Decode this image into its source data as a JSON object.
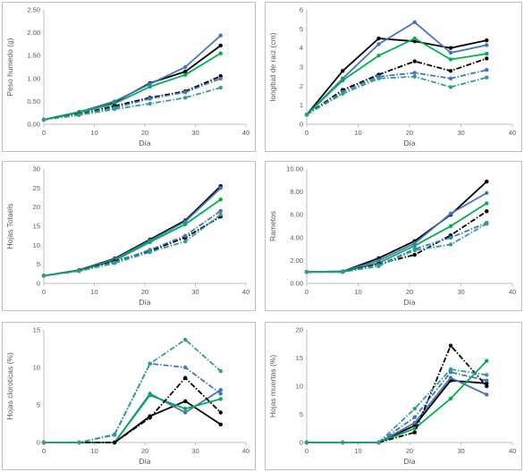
{
  "colors": {
    "black": "#000000",
    "blue": "#4472C4",
    "green": "#00B050",
    "teal": "#2E9F8C"
  },
  "chart_data": [
    {
      "type": "line",
      "xlabel": "Día",
      "ylabel": "Peso humedo (g)",
      "xlim": [
        0,
        40
      ],
      "ylim": [
        0,
        2.5
      ],
      "xticks": [
        "0",
        "10",
        "20",
        "30",
        "40"
      ],
      "yticks": [
        "0.00",
        "0.50",
        "1.00",
        "1.50",
        "2.00",
        "2.50"
      ],
      "x": [
        0,
        7,
        14,
        21,
        28,
        35
      ],
      "series": [
        {
          "color": "#000000",
          "dash": "solid",
          "values": [
            0.1,
            0.27,
            0.48,
            0.9,
            1.15,
            1.72
          ]
        },
        {
          "color": "#4472C4",
          "dash": "solid",
          "values": [
            0.1,
            0.27,
            0.5,
            0.88,
            1.25,
            1.94
          ]
        },
        {
          "color": "#00B050",
          "dash": "solid",
          "values": [
            0.1,
            0.26,
            0.45,
            0.82,
            1.08,
            1.55
          ]
        },
        {
          "color": "#000000",
          "dash": "dashdot",
          "values": [
            0.1,
            0.22,
            0.4,
            0.58,
            0.72,
            1.05
          ]
        },
        {
          "color": "#4472C4",
          "dash": "dashdot",
          "values": [
            0.1,
            0.21,
            0.36,
            0.56,
            0.7,
            1.0
          ]
        },
        {
          "color": "#2E9F8C",
          "dash": "dashdot",
          "values": [
            0.1,
            0.2,
            0.33,
            0.45,
            0.58,
            0.8
          ]
        }
      ]
    },
    {
      "type": "line",
      "xlabel": "Día",
      "ylabel": "longitud de raiz (cm)",
      "xlim": [
        0,
        40
      ],
      "ylim": [
        0,
        6
      ],
      "xticks": [
        "0",
        "10",
        "20",
        "30",
        "40"
      ],
      "yticks": [
        "0",
        "1",
        "2",
        "3",
        "4",
        "5",
        "6"
      ],
      "x": [
        0,
        7,
        14,
        21,
        28,
        35
      ],
      "series": [
        {
          "color": "#000000",
          "dash": "solid",
          "values": [
            0.5,
            2.8,
            4.5,
            4.35,
            4.0,
            4.4
          ]
        },
        {
          "color": "#4472C4",
          "dash": "solid",
          "values": [
            0.5,
            2.4,
            4.2,
            5.35,
            3.75,
            4.15
          ]
        },
        {
          "color": "#00B050",
          "dash": "solid",
          "values": [
            0.5,
            2.3,
            3.6,
            4.5,
            3.4,
            3.7
          ]
        },
        {
          "color": "#000000",
          "dash": "dashdot",
          "values": [
            0.5,
            1.8,
            2.6,
            3.3,
            2.8,
            3.45
          ]
        },
        {
          "color": "#4472C4",
          "dash": "dashdot",
          "values": [
            0.5,
            1.7,
            2.5,
            2.7,
            2.4,
            2.85
          ]
        },
        {
          "color": "#2E9F8C",
          "dash": "dashdot",
          "values": [
            0.5,
            1.6,
            2.4,
            2.5,
            1.95,
            2.45
          ]
        }
      ]
    },
    {
      "type": "line",
      "xlabel": "Día",
      "ylabel": "Hojas Totaels",
      "xlim": [
        0,
        40
      ],
      "ylim": [
        0,
        30
      ],
      "xticks": [
        "0",
        "10",
        "20",
        "30",
        "40"
      ],
      "yticks": [
        "0",
        "5",
        "10",
        "15",
        "20",
        "25",
        "30"
      ],
      "x": [
        0,
        7,
        14,
        21,
        28,
        35
      ],
      "series": [
        {
          "color": "#000000",
          "dash": "solid",
          "values": [
            2.0,
            3.5,
            6.5,
            11.5,
            16.5,
            25.5
          ]
        },
        {
          "color": "#4472C4",
          "dash": "solid",
          "values": [
            2.0,
            3.4,
            6.3,
            11.2,
            16.2,
            25.0
          ]
        },
        {
          "color": "#00B050",
          "dash": "solid",
          "values": [
            2.0,
            3.4,
            6.0,
            10.8,
            15.5,
            22.0
          ]
        },
        {
          "color": "#000000",
          "dash": "dashdot",
          "values": [
            2.0,
            3.3,
            5.8,
            8.5,
            12.0,
            17.5
          ]
        },
        {
          "color": "#4472C4",
          "dash": "dashdot",
          "values": [
            2.0,
            3.3,
            5.5,
            8.8,
            12.5,
            19.0
          ]
        },
        {
          "color": "#2E9F8C",
          "dash": "dashdot",
          "values": [
            2.0,
            3.2,
            5.3,
            8.2,
            11.0,
            18.0
          ]
        }
      ]
    },
    {
      "type": "line",
      "xlabel": "Día",
      "ylabel": "Rametos",
      "xlim": [
        0,
        40
      ],
      "ylim": [
        0,
        10
      ],
      "xticks": [
        "0",
        "10",
        "20",
        "30",
        "40"
      ],
      "yticks": [
        "0.00",
        "2.00",
        "4.00",
        "6.00",
        "8.00",
        "10.00"
      ],
      "x": [
        0,
        7,
        14,
        21,
        28,
        35
      ],
      "series": [
        {
          "color": "#000000",
          "dash": "solid",
          "values": [
            1.0,
            1.05,
            2.2,
            3.7,
            6.0,
            8.9
          ]
        },
        {
          "color": "#4472C4",
          "dash": "solid",
          "values": [
            1.0,
            1.05,
            2.0,
            3.5,
            6.1,
            7.9
          ]
        },
        {
          "color": "#00B050",
          "dash": "solid",
          "values": [
            1.0,
            1.0,
            1.8,
            3.3,
            5.0,
            7.0
          ]
        },
        {
          "color": "#000000",
          "dash": "dashdot",
          "values": [
            1.0,
            1.0,
            1.7,
            2.5,
            4.2,
            6.3
          ]
        },
        {
          "color": "#4472C4",
          "dash": "dashdot",
          "values": [
            1.0,
            1.0,
            1.6,
            3.0,
            4.0,
            5.3
          ]
        },
        {
          "color": "#2E9F8C",
          "dash": "dashdot",
          "values": [
            1.0,
            1.0,
            1.5,
            2.9,
            3.4,
            5.2
          ]
        }
      ]
    },
    {
      "type": "line",
      "xlabel": "Día",
      "ylabel": "Hojas cloroticas (%)",
      "xlim": [
        0,
        40
      ],
      "ylim": [
        0,
        15
      ],
      "xticks": [
        "0",
        "10",
        "20",
        "30",
        "40"
      ],
      "yticks": [
        "0",
        "5",
        "10",
        "15"
      ],
      "x": [
        0,
        7,
        14,
        21,
        28,
        35
      ],
      "series": [
        {
          "color": "#000000",
          "dash": "solid",
          "values": [
            0,
            0,
            0,
            3.5,
            5.5,
            2.4
          ]
        },
        {
          "color": "#4472C4",
          "dash": "solid",
          "values": [
            0,
            0,
            0,
            6.5,
            4.0,
            7.0
          ]
        },
        {
          "color": "#00B050",
          "dash": "solid",
          "values": [
            0,
            0,
            0,
            6.3,
            4.5,
            5.8
          ]
        },
        {
          "color": "#000000",
          "dash": "dashdot",
          "values": [
            0,
            0,
            0,
            3.3,
            8.6,
            4.0
          ]
        },
        {
          "color": "#4472C4",
          "dash": "dashdot",
          "values": [
            0,
            0,
            1.0,
            10.5,
            10.0,
            6.5
          ]
        },
        {
          "color": "#2E9F8C",
          "dash": "dashdot",
          "values": [
            0,
            0,
            1.1,
            10.5,
            13.7,
            9.5
          ]
        }
      ]
    },
    {
      "type": "line",
      "xlabel": "Día",
      "ylabel": "Hojas muertas (%)",
      "xlim": [
        0,
        40
      ],
      "ylim": [
        0,
        20
      ],
      "xticks": [
        "0",
        "10",
        "20",
        "30",
        "40"
      ],
      "yticks": [
        "0",
        "5",
        "10",
        "15",
        "20"
      ],
      "x": [
        0,
        7,
        14,
        21,
        28,
        35
      ],
      "series": [
        {
          "color": "#000000",
          "dash": "solid",
          "values": [
            0,
            0,
            0,
            3.0,
            11.0,
            10.5
          ]
        },
        {
          "color": "#4472C4",
          "dash": "solid",
          "values": [
            0,
            0,
            0,
            3.5,
            11.5,
            8.5
          ]
        },
        {
          "color": "#00B050",
          "dash": "solid",
          "values": [
            0,
            0,
            0,
            2.5,
            7.8,
            14.5
          ]
        },
        {
          "color": "#000000",
          "dash": "dashdot",
          "values": [
            0,
            0,
            0,
            1.8,
            17.2,
            10.0
          ]
        },
        {
          "color": "#4472C4",
          "dash": "dashdot",
          "values": [
            0,
            0,
            0,
            4.5,
            12.5,
            11.0
          ]
        },
        {
          "color": "#2E9F8C",
          "dash": "dashdot",
          "values": [
            0,
            0,
            0,
            6.0,
            13.0,
            12.0
          ]
        }
      ]
    }
  ]
}
